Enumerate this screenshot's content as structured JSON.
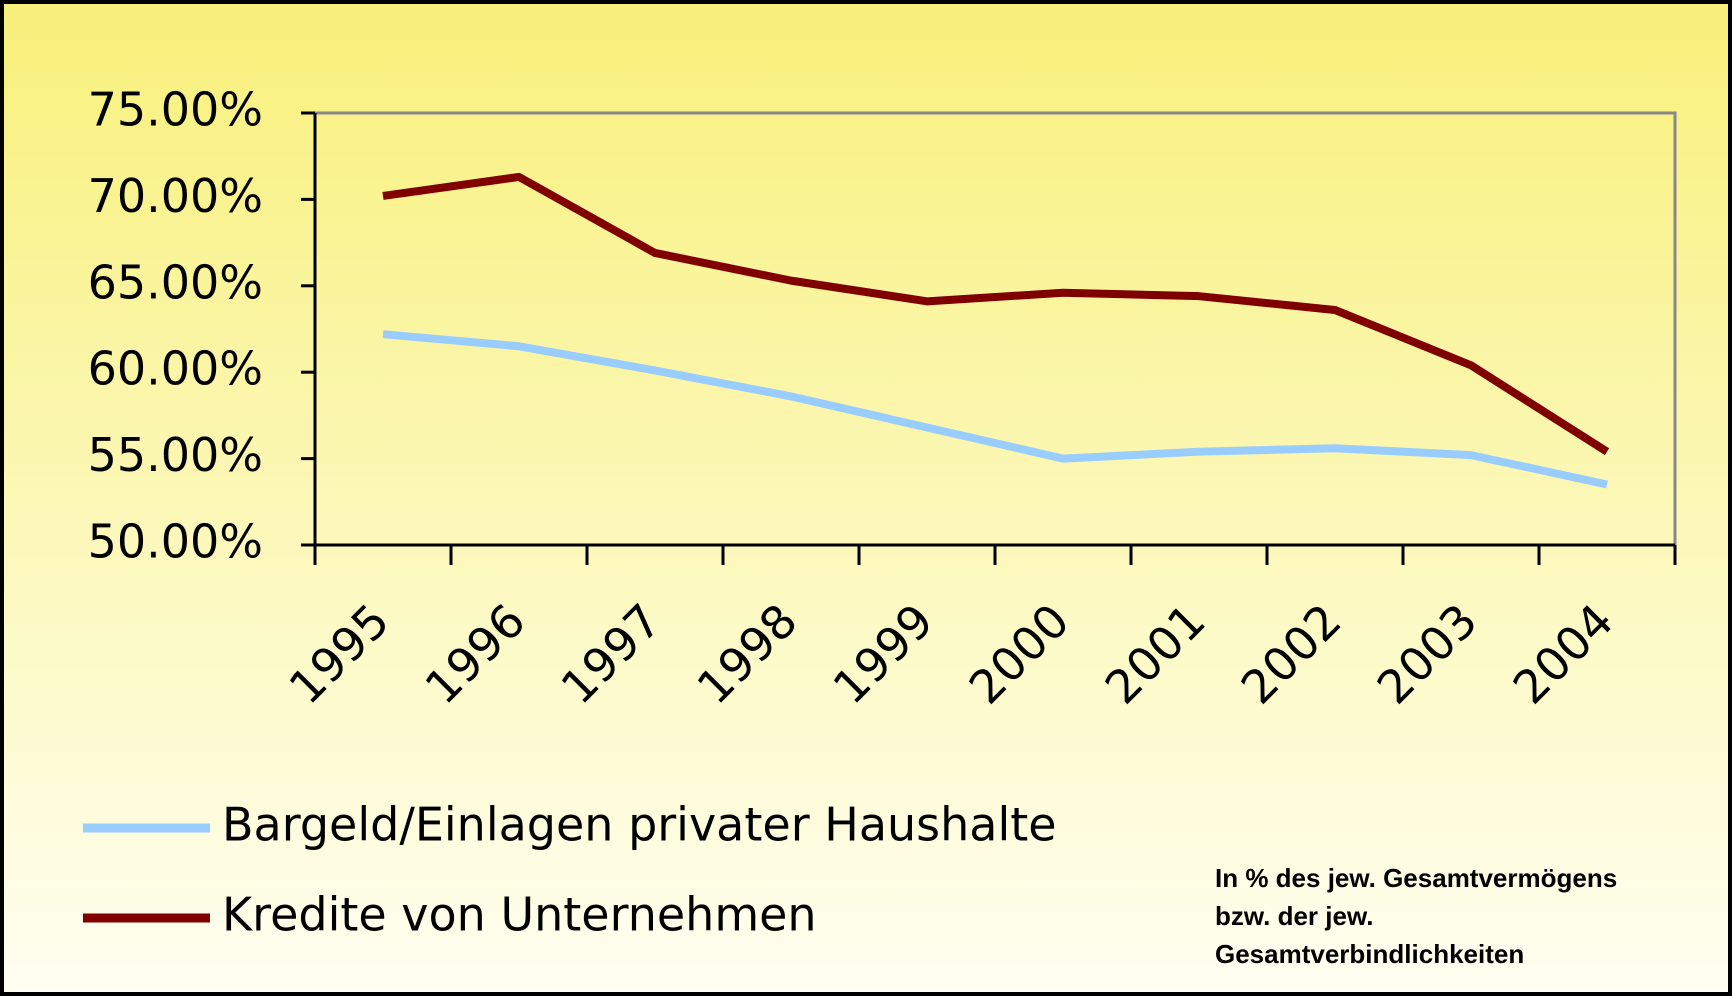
{
  "chart_data": {
    "type": "line",
    "categories": [
      "1995",
      "1996",
      "1997",
      "1998",
      "1999",
      "2000",
      "2001",
      "2002",
      "2003",
      "2004"
    ],
    "series": [
      {
        "name": "Bargeld/Einlagen privater Haushalte",
        "color": "#99ccff",
        "values": [
          62.2,
          61.5,
          60.1,
          58.6,
          56.8,
          55.0,
          55.4,
          55.6,
          55.2,
          53.5
        ]
      },
      {
        "name": "Kredite von Unternehmen",
        "color": "#800000",
        "values": [
          70.2,
          71.3,
          66.9,
          65.3,
          64.1,
          64.6,
          64.4,
          63.6,
          60.4,
          55.4
        ]
      }
    ],
    "ylim": [
      50,
      75
    ],
    "yticks": [
      {
        "value": 50,
        "label": "50.00%"
      },
      {
        "value": 55,
        "label": "55.00%"
      },
      {
        "value": 60,
        "label": "60.00%"
      },
      {
        "value": 65,
        "label": "65.00%"
      },
      {
        "value": 70,
        "label": "70.00%"
      },
      {
        "value": 75,
        "label": "75.00%"
      }
    ],
    "note": [
      "In % des jew. Gesamtvermögens",
      "bzw. der jew.",
      "Gesamtverbindlichkeiten"
    ]
  }
}
